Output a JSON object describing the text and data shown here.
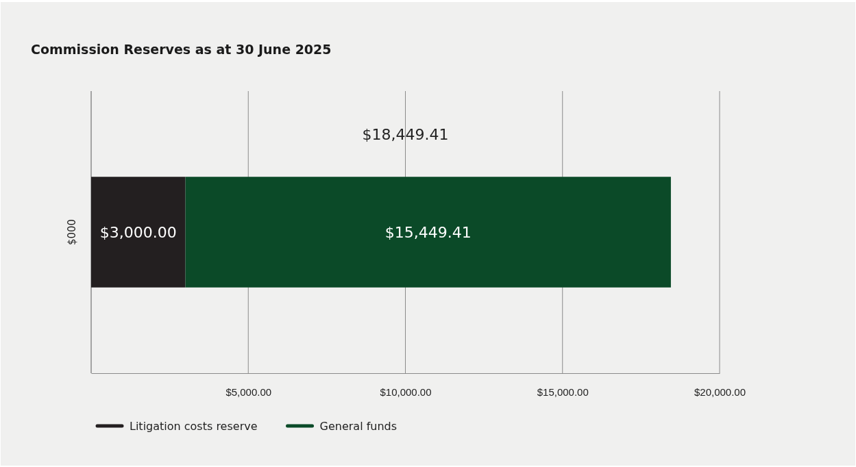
{
  "chart_data": {
    "type": "bar",
    "orientation": "horizontal",
    "stacked": true,
    "title": "Commission Reserves as at 30 June 2025",
    "ylabel": "$000",
    "categories": [
      null
    ],
    "series": [
      {
        "name": "Litigation costs reserve",
        "color": "#231f20",
        "values": [
          3000
        ],
        "value_labels": [
          "$3,000.00"
        ]
      },
      {
        "name": "General funds",
        "color": "#0b4a28",
        "values": [
          15449.41
        ],
        "value_labels": [
          "$15,449.41"
        ]
      }
    ],
    "totals": [
      "$18,449.41"
    ],
    "xlim": [
      0,
      20000
    ],
    "xticks": [
      {
        "value": 0,
        "label": null
      },
      {
        "value": 5000,
        "label": "$5,000.00"
      },
      {
        "value": 10000,
        "label": "$10,000.00"
      },
      {
        "value": 15000,
        "label": "$15,000.00"
      },
      {
        "value": 20000,
        "label": "$20,000.00"
      }
    ],
    "grid": "x",
    "legend": "bottom left"
  }
}
